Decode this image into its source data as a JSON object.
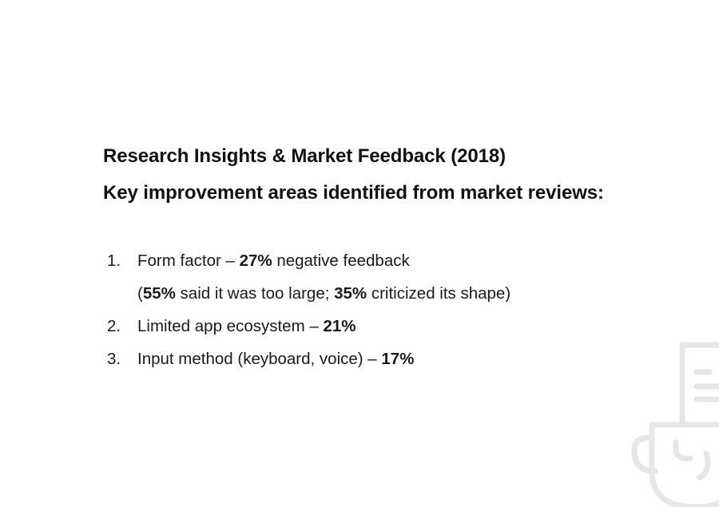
{
  "slide": {
    "title": "Research Insights & Market Feedback (2018)",
    "subtitle": "Key improvement areas identified from market reviews:",
    "items": [
      {
        "number": "1.",
        "text_before": "Form factor – ",
        "bold": "27%",
        "text_after": " negative feedback",
        "detail": {
          "open": "(",
          "bold1": "55%",
          "text1": " said it was too large; ",
          "bold2": "35%",
          "text2": " criticized its shape)"
        }
      },
      {
        "number": "2.",
        "text_before": "Limited app ecosystem – ",
        "bold": "21%"
      },
      {
        "number": "3.",
        "text_before": "Input method (keyboard, voice) – ",
        "bold": "17%"
      }
    ]
  },
  "decoration": {
    "icon": "cup-with-document-icon",
    "color": "#e6e6e6"
  }
}
